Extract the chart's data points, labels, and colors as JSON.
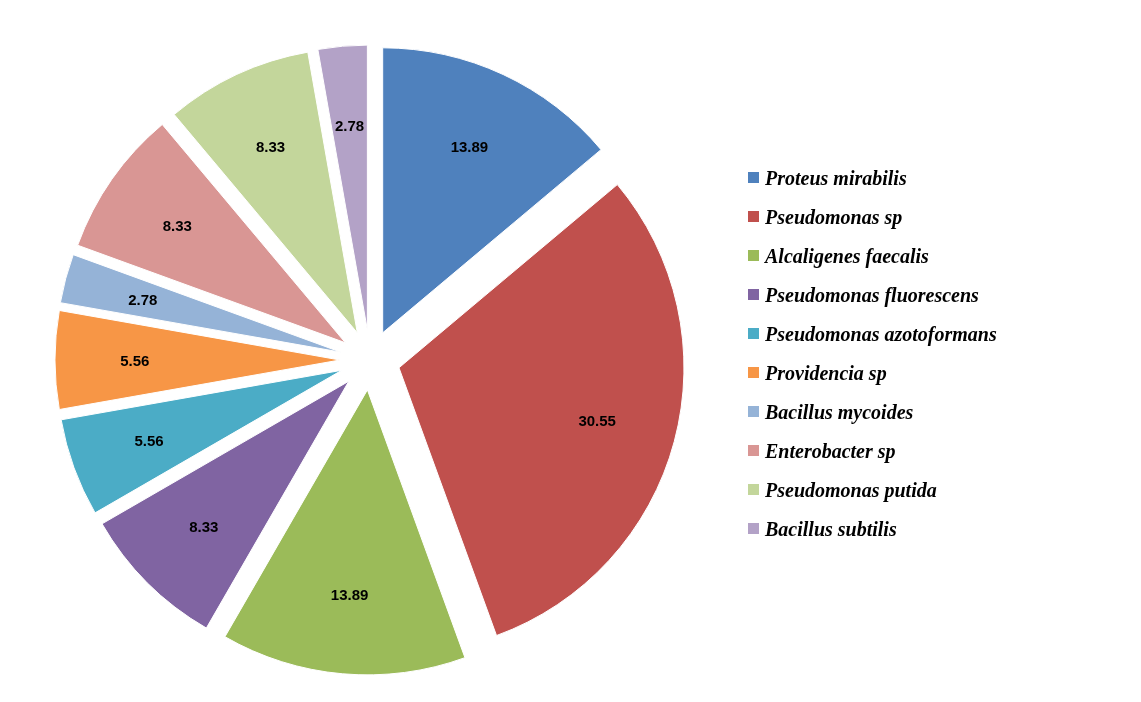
{
  "chart_data": {
    "type": "pie",
    "categories": [
      "Proteus mirabilis",
      "Pseudomonas sp",
      "Alcaligenes faecalis",
      "Pseudomonas fluorescens",
      "Pseudomonas azotoformans",
      "Providencia sp",
      "Bacillus mycoides",
      "Enterobacter sp",
      "Pseudomonas putida",
      "Bacillus subtilis"
    ],
    "values": [
      13.89,
      30.55,
      13.89,
      8.33,
      5.56,
      5.56,
      2.78,
      8.33,
      8.33,
      2.78
    ],
    "colors": [
      "#4f81bd",
      "#c0504d",
      "#9bbb59",
      "#8064a2",
      "#4bacc6",
      "#f79646",
      "#95b3d7",
      "#d99694",
      "#c3d69b",
      "#b3a2c7"
    ],
    "data_labels": true,
    "legend": "right"
  }
}
